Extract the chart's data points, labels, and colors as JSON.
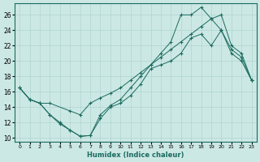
{
  "xlabel": "Humidex (Indice chaleur)",
  "bg_color": "#cce8e5",
  "line_color": "#1a6b5e",
  "grid_color": "#aed4cf",
  "xlim": [
    -0.5,
    23.5
  ],
  "ylim": [
    9.5,
    27.5
  ],
  "xticks": [
    0,
    1,
    2,
    3,
    4,
    5,
    6,
    7,
    8,
    9,
    10,
    11,
    12,
    13,
    14,
    15,
    16,
    17,
    18,
    19,
    20,
    21,
    22,
    23
  ],
  "yticks": [
    10,
    12,
    14,
    16,
    18,
    20,
    22,
    24,
    26
  ],
  "curve1_x": [
    0,
    1,
    2,
    3,
    4,
    5,
    6,
    7,
    8,
    9,
    10,
    11,
    12,
    13,
    14,
    15,
    16,
    17,
    18,
    19,
    20,
    21,
    22,
    23
  ],
  "curve1_y": [
    16.5,
    15.0,
    14.5,
    13.0,
    11.8,
    11.0,
    10.2,
    10.3,
    13.0,
    14.2,
    15.0,
    16.5,
    18.0,
    19.5,
    21.0,
    22.5,
    26.0,
    26.0,
    27.0,
    25.5,
    24.0,
    21.5,
    20.5,
    17.5
  ],
  "curve2_x": [
    0,
    1,
    2,
    3,
    4,
    5,
    6,
    7,
    8,
    9,
    10,
    11,
    12,
    13,
    14,
    15,
    16,
    17,
    18,
    19,
    20,
    21,
    22,
    23
  ],
  "curve2_y": [
    16.5,
    15.0,
    14.5,
    13.0,
    12.0,
    11.0,
    10.2,
    10.3,
    12.5,
    14.0,
    14.5,
    15.5,
    17.0,
    19.0,
    19.5,
    20.0,
    21.0,
    23.0,
    23.5,
    22.0,
    24.0,
    21.0,
    20.0,
    17.5
  ],
  "curve3_x": [
    0,
    1,
    2,
    3,
    5,
    6,
    7,
    8,
    9,
    10,
    11,
    12,
    13,
    14,
    15,
    16,
    17,
    18,
    19,
    20,
    21,
    22,
    23
  ],
  "curve3_y": [
    16.5,
    15.0,
    14.5,
    14.5,
    13.5,
    13.0,
    14.5,
    15.2,
    15.8,
    16.5,
    17.5,
    18.5,
    19.5,
    20.5,
    21.5,
    22.5,
    23.5,
    24.5,
    25.5,
    26.0,
    22.0,
    21.0,
    17.5
  ]
}
